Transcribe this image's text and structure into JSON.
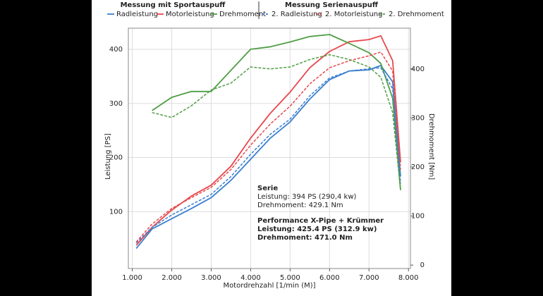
{
  "chart_data": {
    "type": "line",
    "legend_titles": [
      "Messung mit Sportauspuff",
      "Messung Serienauspuff"
    ],
    "x_label": "Motordrehzahl [1/min (M)]",
    "y_label": "Leistung [PS]",
    "y2_label": "Drehmoment [Nm]",
    "x": [
      1100,
      1500,
      2000,
      2500,
      3000,
      3500,
      4000,
      4500,
      5000,
      5500,
      6000,
      6500,
      7000,
      7300,
      7600,
      7800
    ],
    "series": [
      {
        "name": "Radleistung",
        "color": "#3a7fd0",
        "dash": false,
        "values": [
          32,
          68,
          87,
          106,
          126,
          158,
          197,
          236,
          266,
          308,
          344,
          360,
          362,
          370,
          340,
          165
        ]
      },
      {
        "name": "Motorleistung",
        "color": "#e8474c",
        "dash": false,
        "values": [
          38,
          71,
          103,
          129,
          149,
          184,
          236,
          282,
          321,
          366,
          396,
          414,
          418,
          425,
          379,
          191
        ]
      },
      {
        "name": "Drehmoment",
        "color": "#4f9e45",
        "dash": false,
        "axis": "y2",
        "values": [
          null,
          315,
          342,
          354,
          354,
          397,
          440,
          445,
          455,
          466,
          470,
          452,
          433,
          411,
          340,
          153
        ]
      },
      {
        "name": "2. Radleistung",
        "color": "#3a7fd0",
        "dash": true,
        "values": [
          42,
          71,
          94,
          113,
          132,
          165,
          206,
          243,
          271,
          314,
          347,
          360,
          364,
          366,
          327,
          152
        ]
      },
      {
        "name": "2. Motorleistung",
        "color": "#e8474c",
        "dash": true,
        "values": [
          44,
          77,
          106,
          126,
          145,
          178,
          223,
          262,
          295,
          336,
          366,
          379,
          388,
          395,
          360,
          178
        ]
      },
      {
        "name": "2. Drehmoment",
        "color": "#4f9e45",
        "dash": true,
        "axis": "y2",
        "values": [
          null,
          311,
          301,
          325,
          357,
          371,
          404,
          400,
          404,
          419,
          429,
          419,
          404,
          383,
          311,
          153
        ]
      }
    ],
    "xlim": [
      900,
      8050
    ],
    "xticks": [
      {
        "value": 1000,
        "label": "1.000"
      },
      {
        "value": 2000,
        "label": "2.000"
      },
      {
        "value": 3000,
        "label": "3.000"
      },
      {
        "value": 4000,
        "label": "4.000"
      },
      {
        "value": 5000,
        "label": "5.000"
      },
      {
        "value": 6000,
        "label": "6.000"
      },
      {
        "value": 7000,
        "label": "7.000"
      },
      {
        "value": 8000,
        "label": "8.000"
      }
    ],
    "ylim": [
      -5,
      439
    ],
    "yticks": [
      100,
      200,
      300,
      400
    ],
    "y2lim": [
      -7,
      483
    ],
    "y2ticks": [
      0,
      100,
      200,
      300,
      400
    ],
    "grid": true,
    "annotations": [
      {
        "text": "Serie",
        "color": "#111111",
        "bold": true
      },
      {
        "text": "Leistung: 394 PS (290,4 kw)",
        "color": "#111111",
        "bold": false
      },
      {
        "text": "Drehmoment: 429.1 Nm",
        "color": "#111111",
        "bold": false
      },
      {
        "text": "Performance X-Pipe + Krümmer",
        "color": "#111111",
        "bold": true
      },
      {
        "text": "Leistung: 425.4 PS (312.9 kw)",
        "color": "#e8474c",
        "bold": true
      },
      {
        "text": "Drehmoment: 471.0 Nm",
        "color": "#4f9e45",
        "bold": true
      }
    ]
  }
}
